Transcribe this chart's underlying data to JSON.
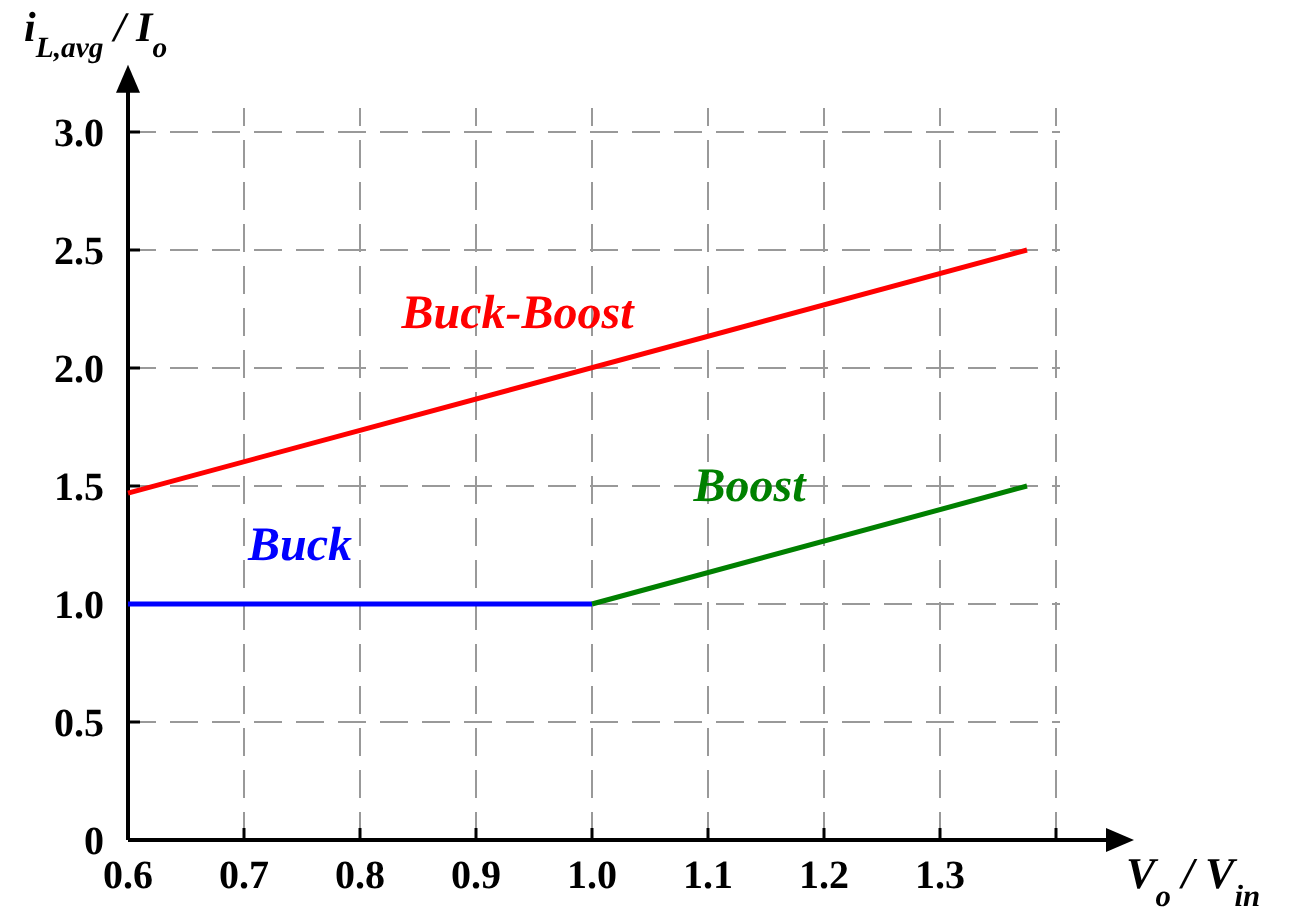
{
  "chart_data": {
    "type": "line",
    "xlabel": "V$_{o}$ / V$_{in}$",
    "ylabel": "i$_{L,avg}$ / I$_{o}$",
    "xlim": [
      0.6,
      1.45
    ],
    "ylim": [
      0,
      3.2
    ],
    "xticks": [
      0.6,
      0.7,
      0.8,
      0.9,
      {
        "value": 1,
        "label": "1.0"
      },
      1.1,
      1.2,
      1.3,
      {
        "value": 1.4,
        "label": null
      }
    ],
    "yticks": [
      0,
      0.5,
      {
        "value": 1,
        "label": "1.0"
      },
      1.5,
      {
        "value": 2,
        "label": "2.0"
      },
      2.5,
      {
        "value": 3,
        "label": "3.0"
      }
    ],
    "grid": true,
    "legend": false,
    "marker": "none",
    "line_style": "solid",
    "series": [
      {
        "name": "Buck-Boost",
        "color": "#ff0000",
        "x": [
          0.6,
          1.375
        ],
        "values": [
          1.47,
          2.5
        ]
      },
      {
        "name": "Buck",
        "color": "#0000ff",
        "x": [
          0.6,
          1.0
        ],
        "values": [
          1.0,
          1.0
        ]
      },
      {
        "name": "Boost",
        "color": "#008000",
        "x": [
          1.0,
          1.375
        ],
        "values": [
          1.0,
          1.5
        ]
      }
    ]
  }
}
